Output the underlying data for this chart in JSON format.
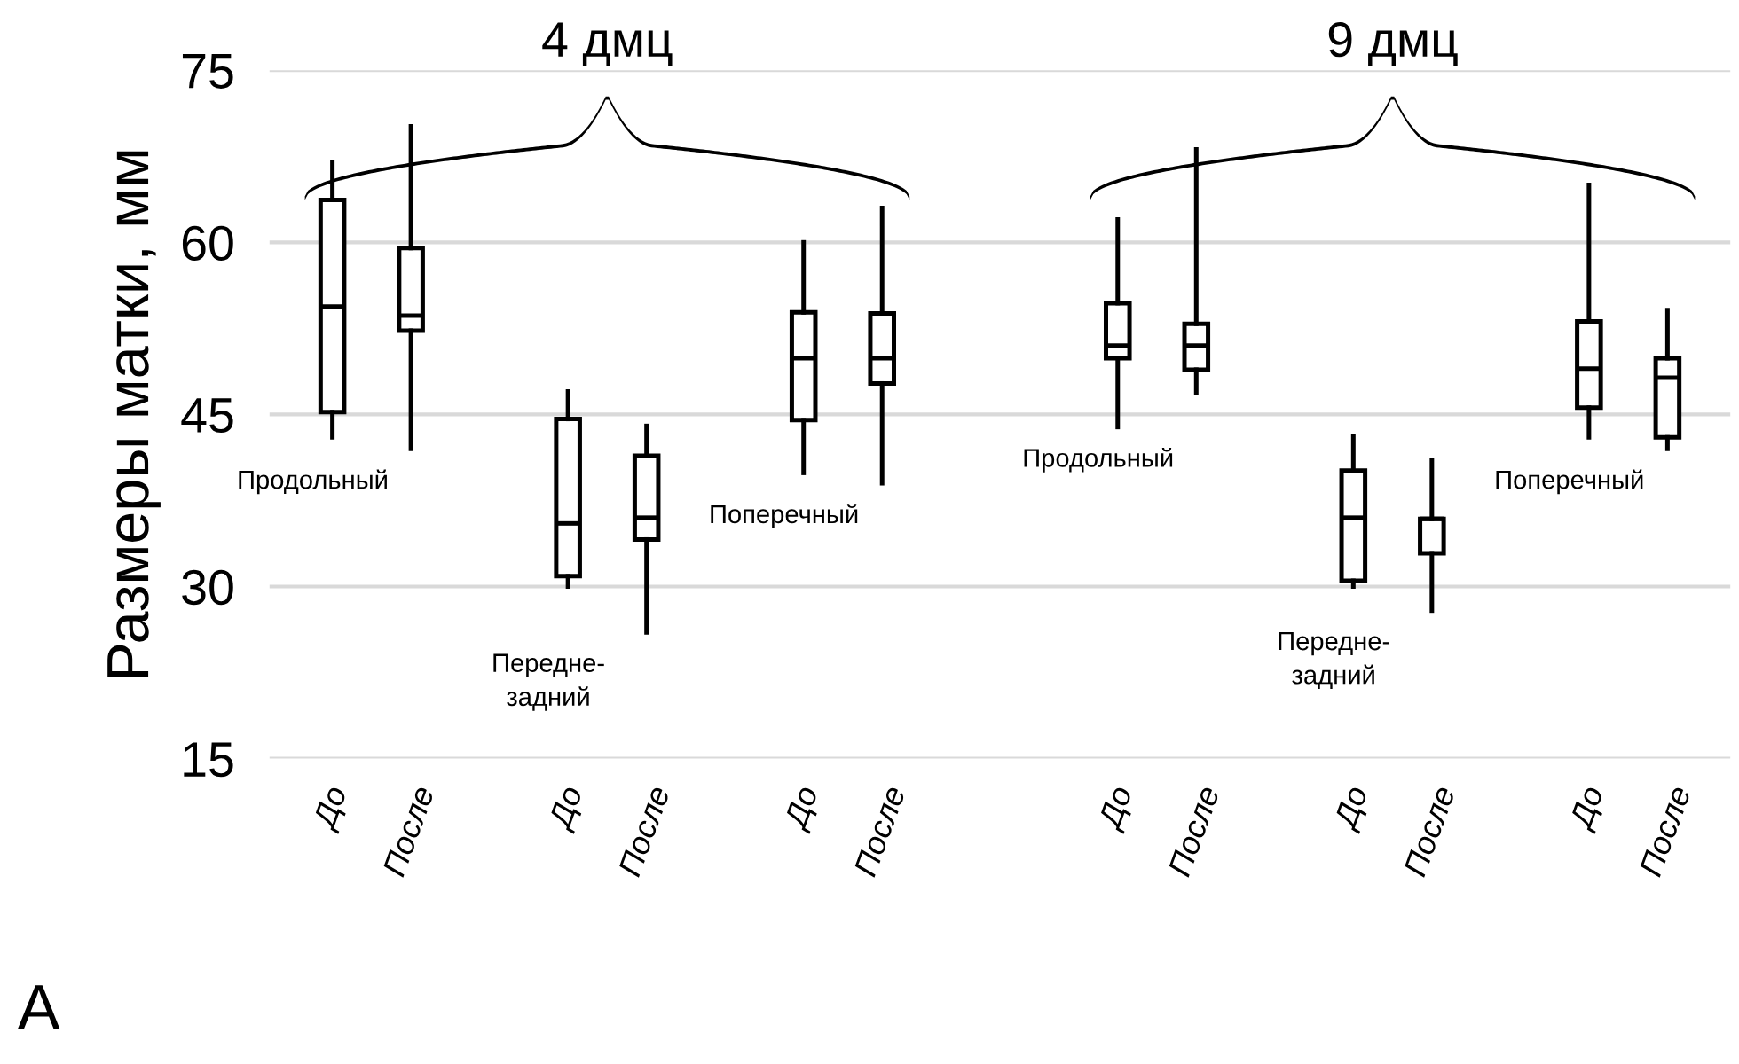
{
  "chart_data": {
    "type": "box",
    "ylabel": "Размеры матки, мм",
    "categories": [
      "До",
      "После",
      null,
      "До",
      "После",
      null,
      "До",
      "После",
      null,
      null,
      "До",
      "После",
      null,
      "До",
      "После",
      null,
      "До",
      "После"
    ],
    "boxes": [
      {
        "low": 43.0,
        "q1": 45.2,
        "median": 54.4,
        "q3": 63.7,
        "high": 67.0
      },
      {
        "low": 42.0,
        "q1": 52.3,
        "median": 53.6,
        "q3": 59.5,
        "high": 70.1
      },
      null,
      {
        "low": 30.0,
        "q1": 30.9,
        "median": 35.5,
        "q3": 44.6,
        "high": 47.0
      },
      {
        "low": 26.0,
        "q1": 34.1,
        "median": 36.0,
        "q3": 41.4,
        "high": 44.0
      },
      null,
      {
        "low": 39.9,
        "q1": 44.5,
        "median": 49.9,
        "q3": 53.9,
        "high": 60.0
      },
      {
        "low": 39.0,
        "q1": 47.7,
        "median": 49.9,
        "q3": 53.8,
        "high": 63.0
      },
      null,
      null,
      {
        "low": 43.9,
        "q1": 49.9,
        "median": 51.0,
        "q3": 54.7,
        "high": 62.0
      },
      {
        "low": 46.9,
        "q1": 48.9,
        "median": 51.0,
        "q3": 52.9,
        "high": 68.1
      },
      null,
      {
        "low": 30.0,
        "q1": 30.5,
        "median": 36.0,
        "q3": 40.1,
        "high": 43.1
      },
      {
        "low": 27.9,
        "q1": 32.9,
        "median": 35.9,
        "q3": 35.9,
        "high": 41.0
      },
      null,
      {
        "low": 43.0,
        "q1": 45.6,
        "median": 49.0,
        "q3": 53.1,
        "high": 65.0
      },
      {
        "low": 42.0,
        "q1": 43.0,
        "median": 48.2,
        "q3": 49.9,
        "high": 54.1
      }
    ],
    "ylim": [
      15,
      75
    ],
    "yticks": [
      15,
      30,
      45,
      60,
      75
    ],
    "grid": "y",
    "annotations": [
      "4 дмц",
      "9 дмц",
      "Продольный",
      "Передне-\nзадний",
      "Поперечный",
      "Продольный",
      "Передне-\nзадний",
      "Поперечный",
      "А"
    ]
  }
}
